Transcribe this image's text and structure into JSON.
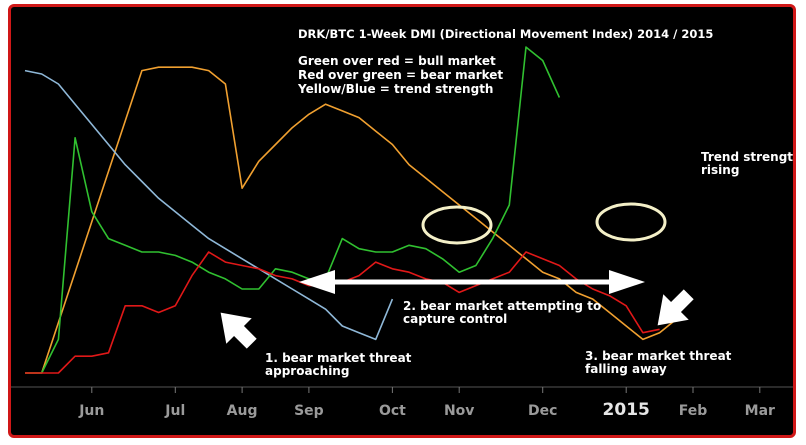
{
  "chart_data": {
    "type": "line",
    "title": "DRK/BTC 1-Week DMI (Directional Movement Index) 2014 / 2015",
    "legend_lines": [
      "Green over red = bull market",
      "Red over green = bear market",
      "Yellow/Blue = trend strength"
    ],
    "x_tick_labels": [
      "Jun",
      "Jul",
      "Aug",
      "Sep",
      "Oct",
      "Nov",
      "Dec",
      "2015",
      "Feb",
      "Mar"
    ],
    "x_tick_weeks": [
      4,
      9,
      13,
      17,
      22,
      26,
      31,
      36,
      40,
      44
    ],
    "grid": false,
    "series": [
      {
        "color": "#f0a030",
        "values": [
          0,
          0,
          15,
          30,
          45,
          60,
          75,
          90,
          91,
          91,
          91,
          90,
          86,
          55,
          63,
          68,
          73,
          77,
          80,
          78,
          76,
          72,
          68,
          62,
          58,
          54,
          50,
          46,
          42,
          38,
          34,
          30,
          28,
          24,
          22,
          18,
          14,
          10,
          12,
          16
        ]
      },
      {
        "color": "#8fb8d8",
        "values": [
          90,
          89,
          86,
          80,
          74,
          68,
          62,
          57,
          52,
          48,
          44,
          40,
          37,
          34,
          31,
          28,
          25,
          22,
          19,
          14,
          12,
          10,
          22
        ]
      },
      {
        "color": "#30c030",
        "values": [
          0,
          0,
          10,
          70,
          48,
          40,
          38,
          36,
          36,
          35,
          33,
          30,
          28,
          25,
          25,
          31,
          30,
          28,
          28,
          40,
          37,
          36,
          36,
          38,
          37,
          34,
          30,
          32,
          40,
          50,
          97,
          93,
          82
        ]
      },
      {
        "color": "#e01818",
        "values": [
          0,
          0,
          0,
          5,
          5,
          6,
          20,
          20,
          18,
          20,
          29,
          36,
          33,
          32,
          31,
          29,
          28,
          26,
          26,
          27,
          29,
          33,
          31,
          30,
          28,
          27,
          24,
          26,
          28,
          30,
          36,
          34,
          32,
          28,
          25,
          23,
          20,
          12,
          13
        ]
      }
    ]
  },
  "annotations": {
    "trend_rising": "Trend strength\nrising",
    "bear_attempting": "2. bear market attempting to\ncapture control",
    "threat_approaching": "1. bear market threat\napproaching",
    "threat_falling": "3. bear market threat\nfalling away"
  }
}
